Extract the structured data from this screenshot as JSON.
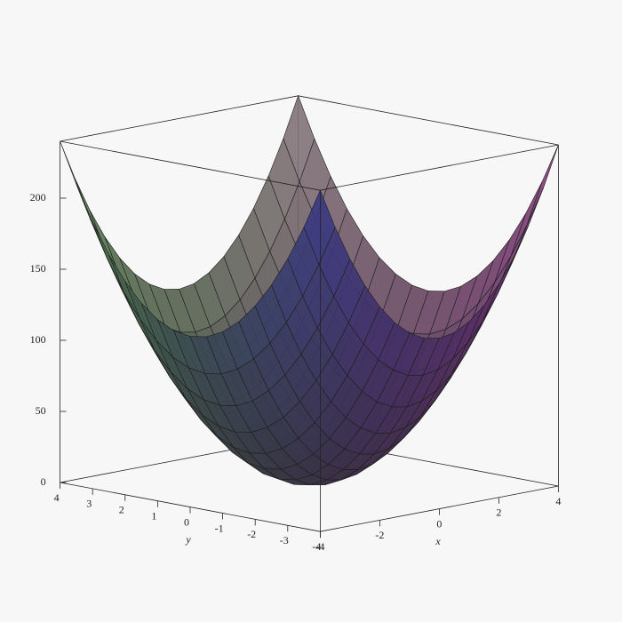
{
  "chart_data": {
    "type": "surface",
    "x": [
      -4,
      -3.5,
      -3,
      -2.5,
      -2,
      -1.5,
      -1,
      -0.5,
      0,
      0.5,
      1,
      1.5,
      2,
      2.5,
      3,
      3.5,
      4
    ],
    "y": [
      -4,
      -3.5,
      -3,
      -2.5,
      -2,
      -1.5,
      -1,
      -0.5,
      0,
      0.5,
      1,
      1.5,
      2,
      2.5,
      3,
      3.5,
      4
    ],
    "z": [
      [
        240,
        211.875,
        187.5,
        166.875,
        150,
        136.875,
        127.5,
        121.875,
        120,
        121.875,
        127.5,
        136.875,
        150,
        166.875,
        187.5,
        211.875,
        240
      ],
      [
        211.875,
        183.75,
        159.375,
        138.75,
        121.875,
        108.75,
        99.375,
        93.75,
        91.875,
        93.75,
        99.375,
        108.75,
        121.875,
        138.75,
        159.375,
        183.75,
        211.875
      ],
      [
        187.5,
        159.375,
        135,
        114.375,
        97.5,
        84.375,
        75,
        69.375,
        67.5,
        69.375,
        75,
        84.375,
        97.5,
        114.375,
        135,
        159.375,
        187.5
      ],
      [
        166.875,
        138.75,
        114.375,
        93.75,
        76.875,
        63.75,
        54.375,
        48.75,
        46.875,
        48.75,
        54.375,
        63.75,
        76.875,
        93.75,
        114.375,
        138.75,
        166.875
      ],
      [
        150,
        121.875,
        97.5,
        76.875,
        60,
        46.875,
        37.5,
        31.875,
        30,
        31.875,
        37.5,
        46.875,
        60,
        76.875,
        97.5,
        121.875,
        150
      ],
      [
        136.875,
        108.75,
        84.375,
        63.75,
        46.875,
        33.75,
        24.375,
        18.75,
        16.875,
        18.75,
        24.375,
        33.75,
        46.875,
        63.75,
        84.375,
        108.75,
        136.875
      ],
      [
        127.5,
        99.375,
        75,
        54.375,
        37.5,
        24.375,
        15,
        9.375,
        7.5,
        9.375,
        15,
        24.375,
        37.5,
        54.375,
        75,
        99.375,
        127.5
      ],
      [
        121.875,
        93.75,
        69.375,
        48.75,
        31.875,
        18.75,
        9.375,
        3.75,
        1.875,
        3.75,
        9.375,
        18.75,
        31.875,
        48.75,
        69.375,
        93.75,
        121.875
      ],
      [
        120,
        91.875,
        67.5,
        46.875,
        30,
        16.875,
        7.5,
        1.875,
        0,
        1.875,
        7.5,
        16.875,
        30,
        46.875,
        67.5,
        91.875,
        120
      ],
      [
        121.875,
        93.75,
        69.375,
        48.75,
        31.875,
        18.75,
        9.375,
        3.75,
        1.875,
        3.75,
        9.375,
        18.75,
        31.875,
        48.75,
        69.375,
        93.75,
        121.875
      ],
      [
        127.5,
        99.375,
        75,
        54.375,
        37.5,
        24.375,
        15,
        9.375,
        7.5,
        9.375,
        15,
        24.375,
        37.5,
        54.375,
        75,
        99.375,
        127.5
      ],
      [
        136.875,
        108.75,
        84.375,
        63.75,
        46.875,
        33.75,
        24.375,
        18.75,
        16.875,
        18.75,
        24.375,
        33.75,
        46.875,
        63.75,
        84.375,
        108.75,
        136.875
      ],
      [
        150,
        121.875,
        97.5,
        76.875,
        60,
        46.875,
        37.5,
        31.875,
        30,
        31.875,
        37.5,
        46.875,
        60,
        76.875,
        97.5,
        121.875,
        150
      ],
      [
        166.875,
        138.75,
        114.375,
        93.75,
        76.875,
        63.75,
        54.375,
        48.75,
        46.875,
        48.75,
        54.375,
        63.75,
        76.875,
        93.75,
        114.375,
        138.75,
        166.875
      ],
      [
        187.5,
        159.375,
        135,
        114.375,
        97.5,
        84.375,
        75,
        69.375,
        67.5,
        69.375,
        75,
        84.375,
        97.5,
        114.375,
        135,
        159.375,
        187.5
      ],
      [
        211.875,
        183.75,
        159.375,
        138.75,
        121.875,
        108.75,
        99.375,
        93.75,
        91.875,
        93.75,
        99.375,
        108.75,
        121.875,
        138.75,
        159.375,
        183.75,
        211.875
      ],
      [
        240,
        211.875,
        187.5,
        166.875,
        150,
        136.875,
        127.5,
        121.875,
        120,
        121.875,
        127.5,
        136.875,
        150,
        166.875,
        187.5,
        211.875,
        240
      ]
    ],
    "xlim": [
      -4,
      4
    ],
    "ylim": [
      -4,
      4
    ],
    "zlim": [
      0,
      240
    ],
    "xticks": [
      -4,
      -2,
      0,
      2,
      4
    ],
    "yticks": [
      -4,
      -3,
      -2,
      -1,
      0,
      1,
      2,
      3,
      4
    ],
    "zticks": [
      0,
      50,
      100,
      150,
      200
    ],
    "xlabel": "x",
    "ylabel": "y"
  }
}
